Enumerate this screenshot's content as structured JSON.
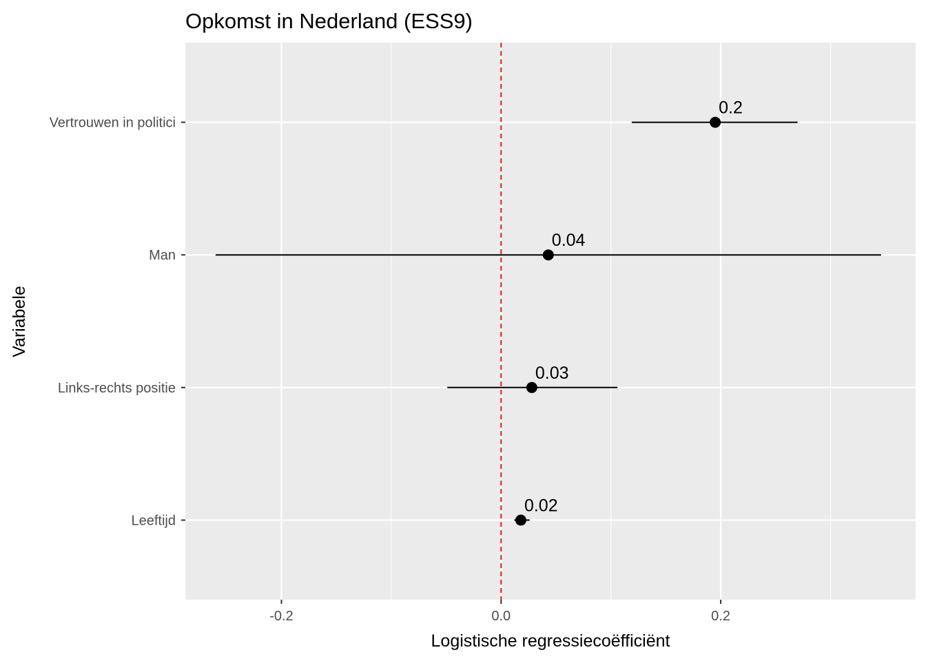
{
  "chart_data": {
    "type": "scatter",
    "title": "Opkomst in Nederland (ESS9)",
    "xlabel": "Logistische regressiecoëfficiënt",
    "ylabel": "Variabele",
    "xlim": [
      -0.2875,
      0.3775
    ],
    "x_ticks": [
      -0.2,
      0.0,
      0.2
    ],
    "x_tick_labels": [
      "-0.2",
      "0.0",
      "0.2"
    ],
    "x_minor_ticks": [
      -0.1,
      0.1,
      0.3
    ],
    "grid": true,
    "reference_line": {
      "x": 0,
      "style": "dashed",
      "color": "#e41a1c"
    },
    "categories": [
      "Vertrouwen in politici",
      "Man",
      "Links-rechts positie",
      "Leeftijd"
    ],
    "estimates": [
      0.195,
      0.043,
      0.028,
      0.018
    ],
    "ci_low": [
      0.119,
      -0.26,
      -0.049,
      0.012
    ],
    "ci_high": [
      0.27,
      0.346,
      0.106,
      0.026
    ],
    "labels": [
      "0.2",
      "0.04",
      "0.03",
      "0.02"
    ]
  },
  "colors": {
    "panel": "#ebebeb",
    "grid": "#ffffff",
    "point": "#000000",
    "reference": "#e41a1c"
  }
}
